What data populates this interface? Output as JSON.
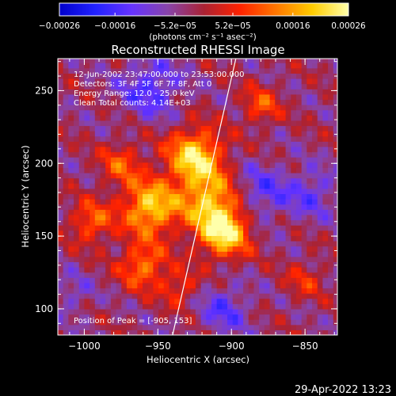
{
  "chart_data": {
    "type": "heatmap",
    "title": "Reconstructed RHESSI Image",
    "xlabel": "Heliocentric X (arcsec)",
    "ylabel": "Heliocentric Y (arcsec)",
    "xlim": [
      -1018,
      -828
    ],
    "ylim": [
      82,
      272
    ],
    "x_ticks": [
      -1000,
      -950,
      -900,
      -850
    ],
    "x_tick_labels": [
      "−1000",
      "−950",
      "−900",
      "−850"
    ],
    "y_ticks": [
      100,
      150,
      200,
      250
    ],
    "y_tick_labels": [
      "100",
      "150",
      "200",
      "250"
    ],
    "colorbar": {
      "range": [
        -0.00026,
        0.00026
      ],
      "ticks": [
        -0.00026,
        -0.00016,
        -5.2e-05,
        5.2e-05,
        0.00016,
        0.00026
      ],
      "tick_labels": [
        "−0.00026",
        "−0.00016",
        "−5.2e−05",
        "5.2e−05",
        "0.00016",
        "0.00026"
      ],
      "unit_label": "(photons cm⁻² s⁻¹ asec⁻²)",
      "colormap": [
        "#0000cc",
        "#2222ff",
        "#6633ff",
        "#8844aa",
        "#aa2233",
        "#ff2200",
        "#ff7700",
        "#ffcc00",
        "#ffffaa"
      ]
    },
    "annotations": [
      "12-Jun-2002 23:47:00.000 to 23:53:00.000",
      "Detectors: 3F 4F 5F 6F 7F 8F, Att 0",
      "Energy Range: 12.0 - 25.0 keV",
      "Clean     Total counts: 4.14E+03",
      "Position of Peak = [-905, 153]"
    ],
    "limb": {
      "x": [
        -940,
        -897
      ],
      "y": [
        82,
        272
      ]
    },
    "sources": [
      {
        "x": -925,
        "y": 205,
        "amp": 0.00025,
        "sigma": 13
      },
      {
        "x": -905,
        "y": 153,
        "amp": 0.00026,
        "sigma": 12
      },
      {
        "x": -955,
        "y": 170,
        "amp": 0.00024,
        "sigma": 13
      },
      {
        "x": -915,
        "y": 175,
        "amp": 0.0002,
        "sigma": 14
      },
      {
        "x": -995,
        "y": 160,
        "amp": 0.00014,
        "sigma": 10
      },
      {
        "x": -975,
        "y": 200,
        "amp": 0.00012,
        "sigma": 10
      },
      {
        "x": -960,
        "y": 130,
        "amp": 0.00016,
        "sigma": 11
      },
      {
        "x": -935,
        "y": 115,
        "amp": 0.0001,
        "sigma": 9
      },
      {
        "x": -880,
        "y": 240,
        "amp": 0.00012,
        "sigma": 9
      },
      {
        "x": -850,
        "y": 120,
        "amp": 8e-05,
        "sigma": 9
      },
      {
        "x": -880,
        "y": 180,
        "amp": -0.0001,
        "sigma": 14
      },
      {
        "x": -955,
        "y": 252,
        "amp": -0.00012,
        "sigma": 14
      },
      {
        "x": -845,
        "y": 180,
        "amp": -9e-05,
        "sigma": 12
      },
      {
        "x": -905,
        "y": 100,
        "amp": -0.0001,
        "sigma": 12
      },
      {
        "x": -1008,
        "y": 110,
        "amp": -6e-05,
        "sigma": 10
      }
    ]
  },
  "footer": {
    "timestamp": "29-Apr-2022 13:23"
  }
}
